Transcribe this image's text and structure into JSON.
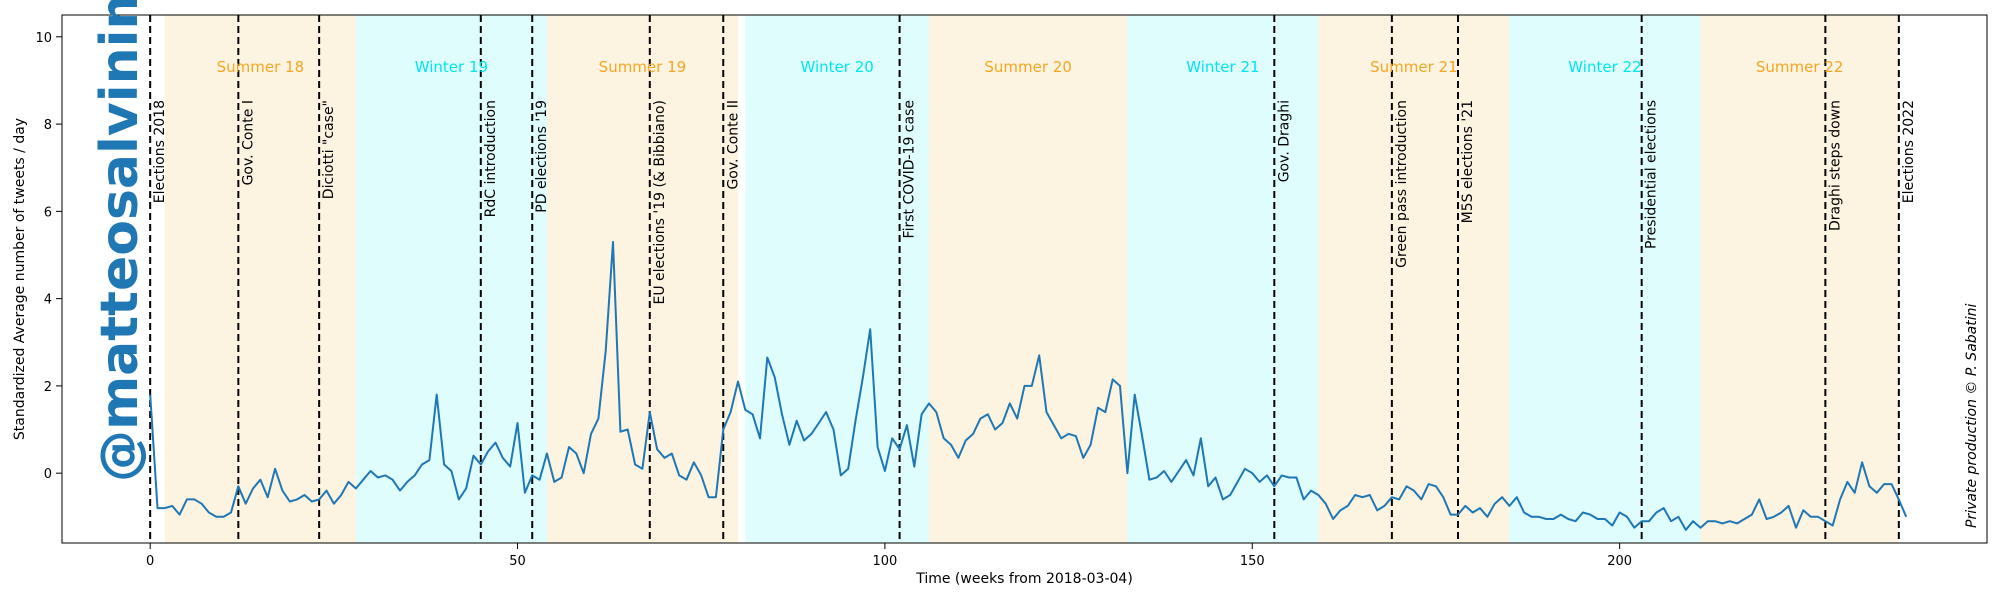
{
  "chart_data": {
    "type": "line",
    "xlabel": "Time (weeks from 2018-03-04)",
    "ylabel": "Standardized Average number of tweets / day",
    "xlim": [
      -12,
      250
    ],
    "ylim": [
      -1.6,
      10.5
    ],
    "xticks": [
      0,
      50,
      100,
      150,
      200
    ],
    "yticks": [
      0,
      2,
      4,
      6,
      8,
      10
    ],
    "watermark": "@matteosalvinimi",
    "credit": "Private production © P. Sabatini",
    "line_color": "#1f77b4",
    "summer_color": "#fdf3e1",
    "winter_color": "#e0fdfd",
    "summer_text_color": "#f5a623",
    "winter_text_color": "#00e5ee",
    "seasons": [
      {
        "label": "Summer 18",
        "type": "summer",
        "start": 2,
        "end": 28
      },
      {
        "label": "Winter 19",
        "type": "winter",
        "start": 28,
        "end": 54
      },
      {
        "label": "Summer 19",
        "type": "summer",
        "start": 54,
        "end": 80
      },
      {
        "label": "Winter 20",
        "type": "winter",
        "start": 81,
        "end": 106
      },
      {
        "label": "Summer 20",
        "type": "summer",
        "start": 106,
        "end": 133
      },
      {
        "label": "Winter 21",
        "type": "winter",
        "start": 133,
        "end": 159
      },
      {
        "label": "Summer 21",
        "type": "summer",
        "start": 159,
        "end": 185
      },
      {
        "label": "Winter 22",
        "type": "winter",
        "start": 185,
        "end": 211
      },
      {
        "label": "Summer 22",
        "type": "summer",
        "start": 211,
        "end": 238
      }
    ],
    "events": [
      {
        "label": "Elections 2018",
        "x": 0
      },
      {
        "label": "Gov. Conte I",
        "x": 12
      },
      {
        "label": "Diciotti \"case\"",
        "x": 23
      },
      {
        "label": "RdC introduction",
        "x": 45
      },
      {
        "label": "PD elections '19",
        "x": 52
      },
      {
        "label": "EU elections '19 (& Bibbiano)",
        "x": 68
      },
      {
        "label": "Gov. Conte II",
        "x": 78
      },
      {
        "label": "First COVID-19 case",
        "x": 102
      },
      {
        "label": "Gov. Draghi",
        "x": 153
      },
      {
        "label": "Green pass introduction",
        "x": 169
      },
      {
        "label": "M5S elections '21",
        "x": 178
      },
      {
        "label": "Presidential elections",
        "x": 203
      },
      {
        "label": "Draghi steps down",
        "x": 228
      },
      {
        "label": "Elections 2022",
        "x": 238
      }
    ],
    "series": [
      {
        "x0": 0,
        "values": [
          1.8,
          -0.8,
          -0.8,
          -0.75,
          -0.95,
          -0.6,
          -0.6,
          -0.7,
          -0.9,
          -1.0,
          -1.0,
          -0.9,
          -0.3,
          -0.7,
          -0.35,
          -0.15,
          -0.55,
          0.1,
          -0.4,
          -0.65,
          -0.6,
          -0.5,
          -0.65,
          -0.6,
          -0.4,
          -0.7,
          -0.5,
          -0.2,
          -0.35,
          -0.15,
          0.05,
          -0.1,
          -0.05,
          -0.15,
          -0.4,
          -0.2,
          -0.05,
          0.2,
          0.3,
          1.8,
          0.2,
          0.05,
          -0.6,
          -0.35,
          0.4,
          0.2,
          0.5,
          0.7,
          0.35,
          0.15,
          1.15,
          -0.45,
          -0.05,
          -0.15,
          0.45,
          -0.2,
          -0.1,
          0.6,
          0.45,
          0.0,
          0.9,
          1.25,
          2.8,
          5.3,
          0.95,
          1.0,
          0.2,
          0.1,
          1.4,
          0.55,
          0.35,
          0.45,
          -0.05,
          -0.15,
          0.25,
          -0.05,
          -0.55,
          -0.55,
          1.0,
          1.4,
          2.1,
          1.45,
          1.35,
          0.8,
          2.65,
          2.2,
          1.35,
          0.65,
          1.2,
          0.75,
          0.9,
          1.15,
          1.4,
          1.0,
          -0.05,
          0.1,
          1.2,
          2.2,
          3.3,
          0.6,
          0.05,
          0.8,
          0.55,
          1.1,
          0.15,
          1.35,
          1.6,
          1.4,
          0.8,
          0.65,
          0.35,
          0.75,
          0.9,
          1.25,
          1.35,
          1.0,
          1.15,
          1.6,
          1.25,
          2.0,
          2.0,
          2.7,
          1.4,
          1.1,
          0.8,
          0.9,
          0.85,
          0.35,
          0.65,
          1.5,
          1.4,
          2.15,
          2.0,
          0.0,
          1.8,
          0.85,
          -0.15,
          -0.1,
          0.05,
          -0.2,
          0.05,
          0.3,
          -0.05,
          0.8,
          -0.3,
          -0.1,
          -0.6,
          -0.5,
          -0.2,
          0.1,
          0.0,
          -0.2,
          -0.05,
          -0.3,
          -0.05,
          -0.1,
          -0.1,
          -0.6,
          -0.4,
          -0.5,
          -0.7,
          -1.05,
          -0.85,
          -0.75,
          -0.5,
          -0.55,
          -0.5,
          -0.85,
          -0.75,
          -0.55,
          -0.6,
          -0.3,
          -0.4,
          -0.6,
          -0.25,
          -0.3,
          -0.55,
          -0.95,
          -0.95,
          -0.75,
          -0.9,
          -0.8,
          -1.0,
          -0.7,
          -0.55,
          -0.75,
          -0.55,
          -0.9,
          -1.0,
          -1.0,
          -1.05,
          -1.05,
          -0.95,
          -1.05,
          -1.1,
          -0.9,
          -0.95,
          -1.05,
          -1.05,
          -1.2,
          -0.9,
          -1.0,
          -1.25,
          -1.1,
          -1.1,
          -0.9,
          -0.8,
          -1.1,
          -1.0,
          -1.3,
          -1.1,
          -1.25,
          -1.1,
          -1.1,
          -1.15,
          -1.1,
          -1.15,
          -1.05,
          -0.95,
          -0.6,
          -1.05,
          -1.0,
          -0.9,
          -0.75,
          -1.25,
          -0.85,
          -1.0,
          -1.0,
          -1.1,
          -1.2,
          -0.6,
          -0.2,
          -0.45,
          0.25,
          -0.3,
          -0.45,
          -0.25,
          -0.25,
          -0.6,
          -1.0
        ]
      }
    ]
  }
}
